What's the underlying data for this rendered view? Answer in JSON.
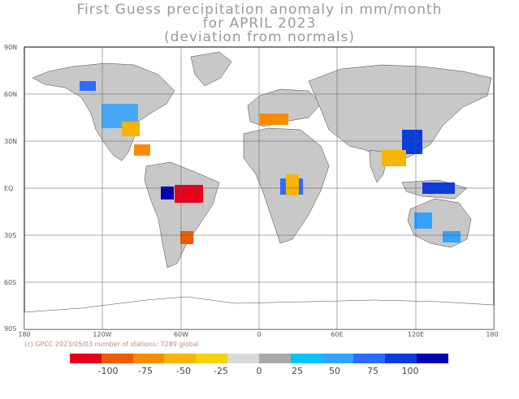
{
  "title": {
    "line1": "First Guess precipitation anomaly in mm/month",
    "line2": "for APRIL 2023",
    "line3": "(deviation from normals)"
  },
  "lat_labels": [
    "90N",
    "60N",
    "30N",
    "EQ",
    "30S",
    "60S",
    "90S"
  ],
  "lon_labels": [
    "180",
    "120W",
    "60W",
    "0",
    "60E",
    "120E",
    "180"
  ],
  "credit": "(c) GPCC 2023/05/03 number of stations: 7289 global",
  "colorbar": {
    "colors": [
      "#e8001a",
      "#f05a00",
      "#f78c00",
      "#f7b400",
      "#f7d200",
      "#d9d9d9",
      "#a9a9a9",
      "#00c4ff",
      "#33a3ff",
      "#2b6cff",
      "#0a3ce0",
      "#0000b4"
    ],
    "labels": [
      "-100",
      "-75",
      "-50",
      "-25",
      "0",
      "25",
      "50",
      "75",
      "100"
    ]
  }
}
